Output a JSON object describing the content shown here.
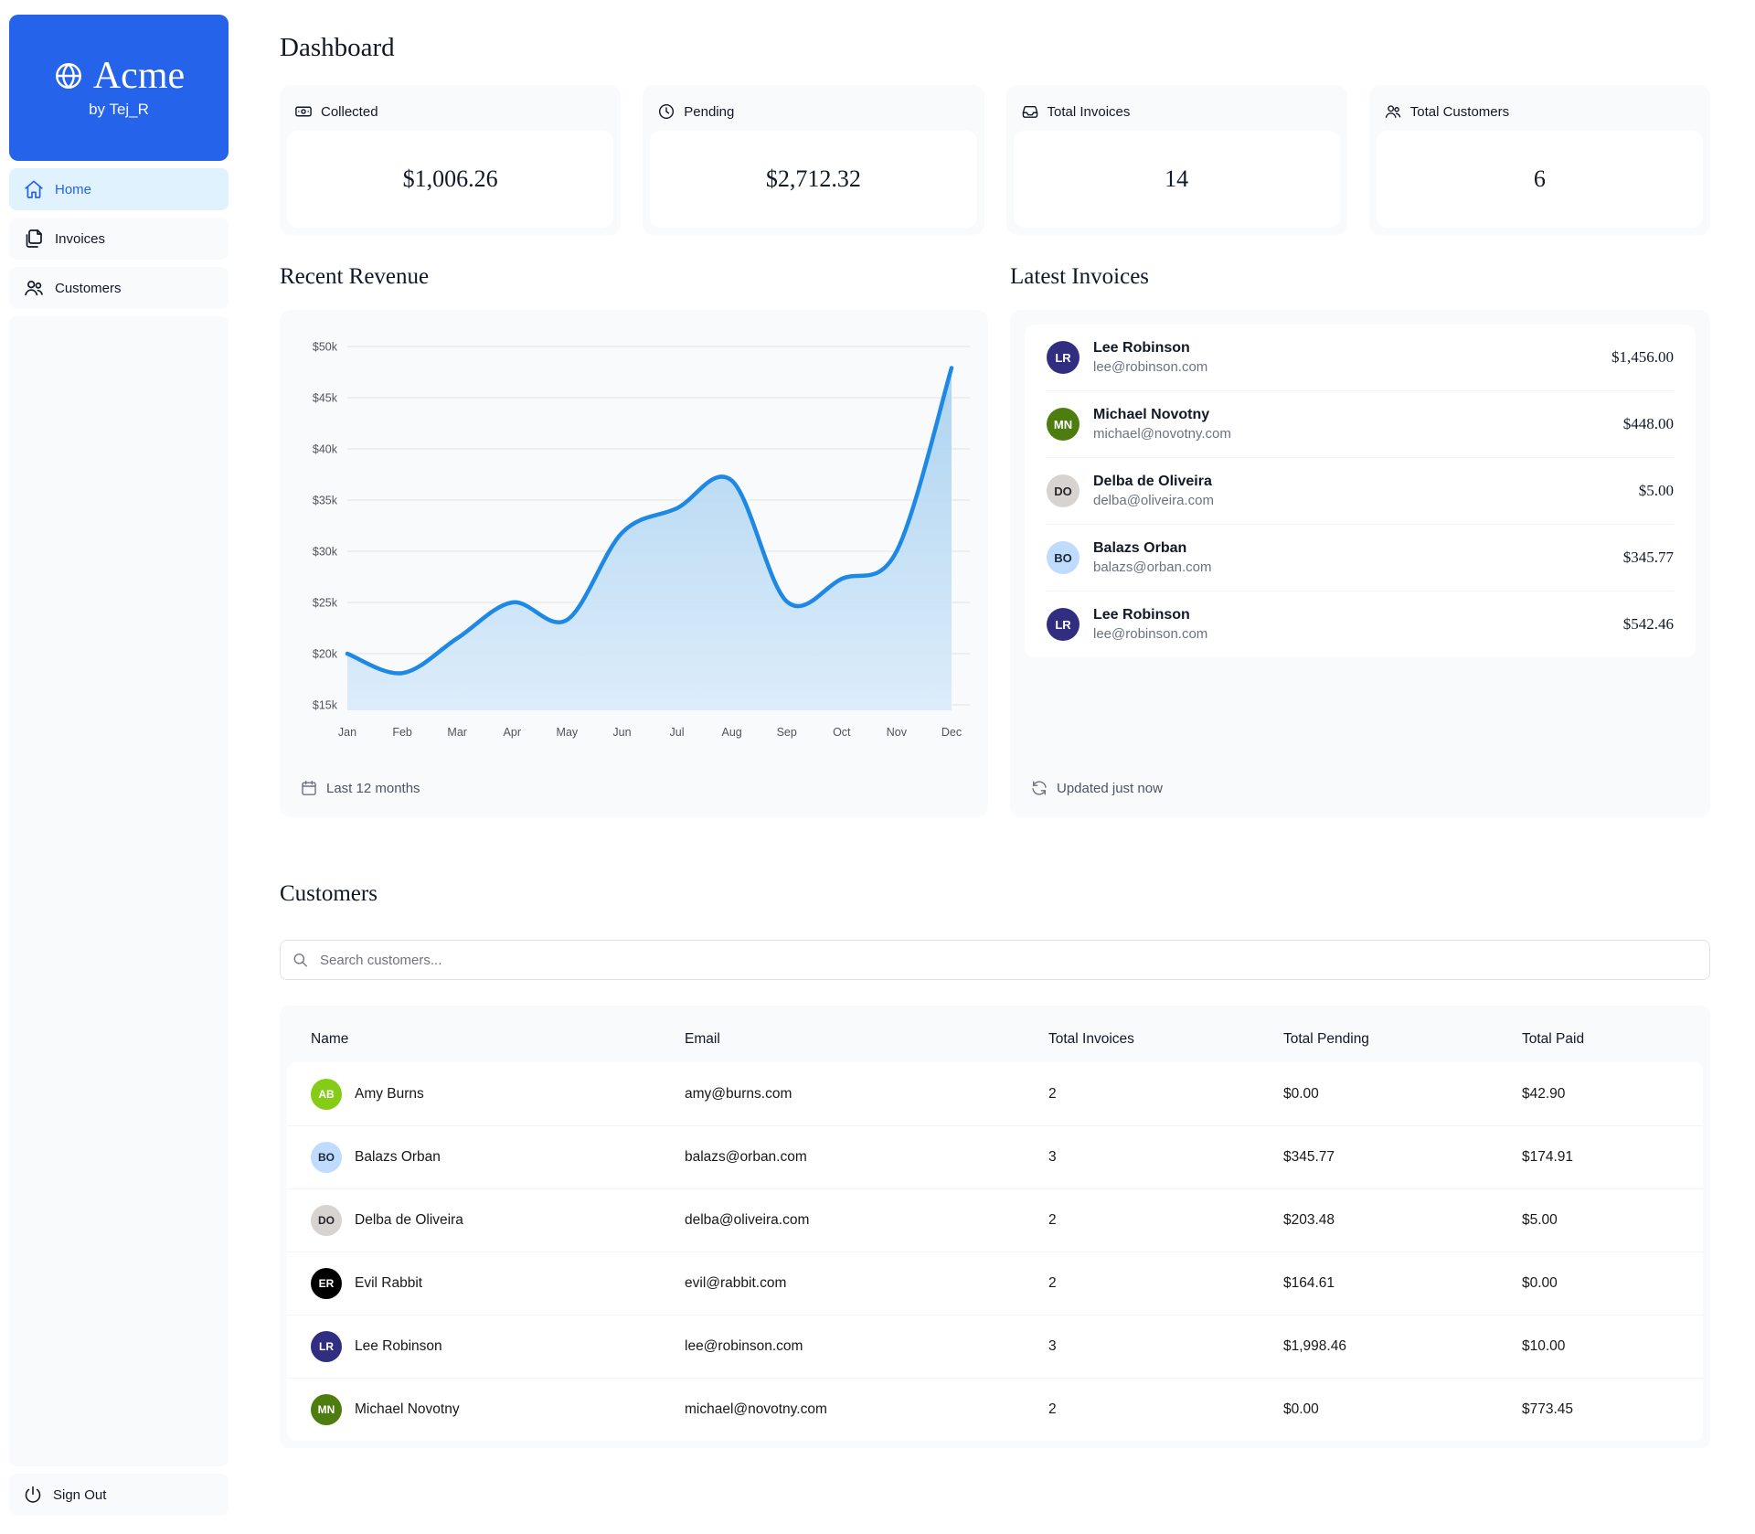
{
  "sidebar": {
    "logo": {
      "title": "Acme",
      "subtitle": "by Tej_R",
      "icon": "globe-icon",
      "bg_color": "#2563eb"
    },
    "nav": [
      {
        "label": "Home",
        "icon": "home-icon",
        "active": true
      },
      {
        "label": "Invoices",
        "icon": "invoices-icon",
        "active": false
      },
      {
        "label": "Customers",
        "icon": "customers-icon",
        "active": false
      }
    ],
    "sign_out_label": "Sign Out",
    "sign_out_icon": "power-icon",
    "active_bg": "#e0f2fe",
    "active_color": "#2563eb"
  },
  "header": {
    "title": "Dashboard"
  },
  "stats": [
    {
      "icon": "banknote-icon",
      "label": "Collected",
      "value": "$1,006.26"
    },
    {
      "icon": "clock-icon",
      "label": "Pending",
      "value": "$2,712.32"
    },
    {
      "icon": "inbox-icon",
      "label": "Total Invoices",
      "value": "14"
    },
    {
      "icon": "user-group-icon",
      "label": "Total Customers",
      "value": "6"
    }
  ],
  "revenue": {
    "title": "Recent Revenue",
    "footer_label": "Last 12 months",
    "footer_icon": "calendar-icon"
  },
  "chart_data": {
    "type": "area",
    "title": "Recent Revenue",
    "x": [
      "Jan",
      "Feb",
      "Mar",
      "Apr",
      "May",
      "Jun",
      "Jul",
      "Aug",
      "Sep",
      "Oct",
      "Nov",
      "Dec"
    ],
    "series": [
      {
        "name": "Revenue",
        "values": [
          20000,
          18100,
          21500,
          25000,
          23300,
          31800,
          34200,
          36900,
          25100,
          27300,
          30000,
          47900
        ]
      }
    ],
    "ylim": [
      15000,
      50000
    ],
    "y_tick_values": [
      50000,
      45000,
      40000,
      35000,
      30000,
      25000,
      20000,
      15000
    ],
    "y_tick_labels": [
      "$50k",
      "$45k",
      "$40k",
      "$35k",
      "$30k",
      "$25k",
      "$20k",
      "$15k"
    ],
    "grid": true,
    "legend": false,
    "line_color": "#1e88e5",
    "fill_top": "#a7d0f0",
    "fill_bottom": "#d9ebfa",
    "tick_color": "#52525b",
    "grid_color": "#e8eaed"
  },
  "latest_invoices": {
    "title": "Latest Invoices",
    "footer_label": "Updated just now",
    "footer_icon": "refresh-icon",
    "items": [
      {
        "name": "Lee Robinson",
        "email": "lee@robinson.com",
        "amount": "$1,456.00",
        "avatar_bg": "#312e81",
        "avatar_fg": "#ffffff"
      },
      {
        "name": "Michael Novotny",
        "email": "michael@novotny.com",
        "amount": "$448.00",
        "avatar_bg": "#4d7c0f",
        "avatar_fg": "#ffffff"
      },
      {
        "name": "Delba de Oliveira",
        "email": "delba@oliveira.com",
        "amount": "$5.00",
        "avatar_bg": "#d6d3d1",
        "avatar_fg": "#27272a"
      },
      {
        "name": "Balazs Orban",
        "email": "balazs@orban.com",
        "amount": "$345.77",
        "avatar_bg": "#bfdbfe",
        "avatar_fg": "#1f2937"
      },
      {
        "name": "Lee Robinson",
        "email": "lee@robinson.com",
        "amount": "$542.46",
        "avatar_bg": "#312e81",
        "avatar_fg": "#ffffff"
      }
    ]
  },
  "customers": {
    "title": "Customers",
    "search_placeholder": "Search customers...",
    "search_icon": "search-icon",
    "columns": [
      "Name",
      "Email",
      "Total Invoices",
      "Total Pending",
      "Total Paid"
    ],
    "rows": [
      {
        "name": "Amy Burns",
        "email": "amy@burns.com",
        "total_invoices": "2",
        "total_pending": "$0.00",
        "total_paid": "$42.90",
        "avatar_bg": "#84cc16",
        "avatar_fg": "#ffffff"
      },
      {
        "name": "Balazs Orban",
        "email": "balazs@orban.com",
        "total_invoices": "3",
        "total_pending": "$345.77",
        "total_paid": "$174.91",
        "avatar_bg": "#bfdbfe",
        "avatar_fg": "#1f2937"
      },
      {
        "name": "Delba de Oliveira",
        "email": "delba@oliveira.com",
        "total_invoices": "2",
        "total_pending": "$203.48",
        "total_paid": "$5.00",
        "avatar_bg": "#d6d3d1",
        "avatar_fg": "#27272a"
      },
      {
        "name": "Evil Rabbit",
        "email": "evil@rabbit.com",
        "total_invoices": "2",
        "total_pending": "$164.61",
        "total_paid": "$0.00",
        "avatar_bg": "#000000",
        "avatar_fg": "#ffffff"
      },
      {
        "name": "Lee Robinson",
        "email": "lee@robinson.com",
        "total_invoices": "3",
        "total_pending": "$1,998.46",
        "total_paid": "$10.00",
        "avatar_bg": "#312e81",
        "avatar_fg": "#ffffff"
      },
      {
        "name": "Michael Novotny",
        "email": "michael@novotny.com",
        "total_invoices": "2",
        "total_pending": "$0.00",
        "total_paid": "$773.45",
        "avatar_bg": "#4d7c0f",
        "avatar_fg": "#ffffff"
      }
    ]
  }
}
